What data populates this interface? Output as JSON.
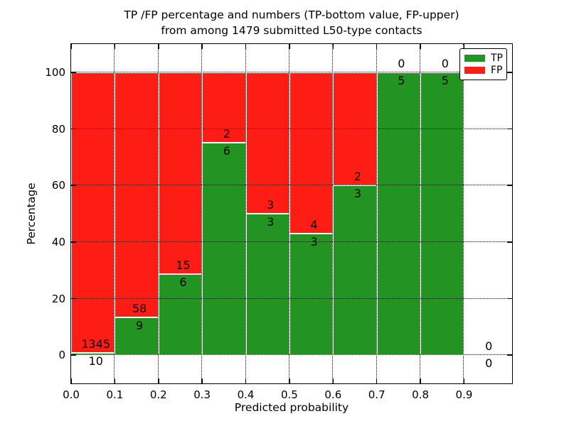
{
  "figure": {
    "title_line1": "TP /FP percentage and numbers (TP-bottom value, FP-upper)",
    "title_line2": "from among 1479 submitted L50-type contacts",
    "xlabel": "Predicted probability",
    "ylabel": "Percentage"
  },
  "legend": {
    "position": "upper right",
    "items": [
      {
        "label": "TP",
        "color": "#229422"
      },
      {
        "label": "FP",
        "color": "#fd1d15"
      }
    ]
  },
  "chart_data": {
    "type": "bar",
    "stacked": true,
    "normalized_to_percent": true,
    "title": "TP /FP percentage and numbers (TP-bottom value, FP-upper) from among 1479 submitted L50-type contacts",
    "xlabel": "Predicted probability",
    "ylabel": "Percentage",
    "total_contacts": 1479,
    "xlim": [
      0.0,
      1.01
    ],
    "ylim": [
      -10,
      110
    ],
    "grid": true,
    "grid_style": "dotted",
    "bar_edge_color": "#ffffff",
    "x_ticks": [
      0.0,
      0.1,
      0.2,
      0.3,
      0.4,
      0.5,
      0.6,
      0.7,
      0.8,
      0.9
    ],
    "x_tick_labels": [
      "0.0",
      "0.1",
      "0.2",
      "0.3",
      "0.4",
      "0.5",
      "0.6",
      "0.7",
      "0.8",
      "0.9"
    ],
    "y_ticks": [
      0,
      20,
      40,
      60,
      80,
      100
    ],
    "y_tick_labels": [
      "0",
      "20",
      "40",
      "60",
      "80",
      "100"
    ],
    "series": [
      {
        "name": "TP",
        "color": "#229422",
        "values": [
          10,
          9,
          6,
          6,
          3,
          3,
          3,
          5,
          5,
          0
        ]
      },
      {
        "name": "FP",
        "color": "#fd1d15",
        "values": [
          1345,
          58,
          15,
          2,
          3,
          4,
          2,
          0,
          0,
          0
        ]
      }
    ],
    "bins": [
      {
        "range": [
          0.0,
          0.1
        ],
        "tp": 10,
        "fp": 1345,
        "tp_pct": 0.74
      },
      {
        "range": [
          0.1,
          0.2
        ],
        "tp": 9,
        "fp": 58,
        "tp_pct": 13.43
      },
      {
        "range": [
          0.2,
          0.3
        ],
        "tp": 6,
        "fp": 15,
        "tp_pct": 28.57
      },
      {
        "range": [
          0.3,
          0.4
        ],
        "tp": 6,
        "fp": 2,
        "tp_pct": 75.0
      },
      {
        "range": [
          0.4,
          0.5
        ],
        "tp": 3,
        "fp": 3,
        "tp_pct": 50.0
      },
      {
        "range": [
          0.5,
          0.6
        ],
        "tp": 3,
        "fp": 4,
        "tp_pct": 42.86
      },
      {
        "range": [
          0.6,
          0.7
        ],
        "tp": 3,
        "fp": 2,
        "tp_pct": 60.0
      },
      {
        "range": [
          0.7,
          0.8
        ],
        "tp": 5,
        "fp": 0,
        "tp_pct": 100.0
      },
      {
        "range": [
          0.8,
          0.9
        ],
        "tp": 5,
        "fp": 0,
        "tp_pct": 100.0
      },
      {
        "range": [
          0.9,
          1.0
        ],
        "tp": 0,
        "fp": 0,
        "tp_pct": 0.0
      }
    ]
  }
}
